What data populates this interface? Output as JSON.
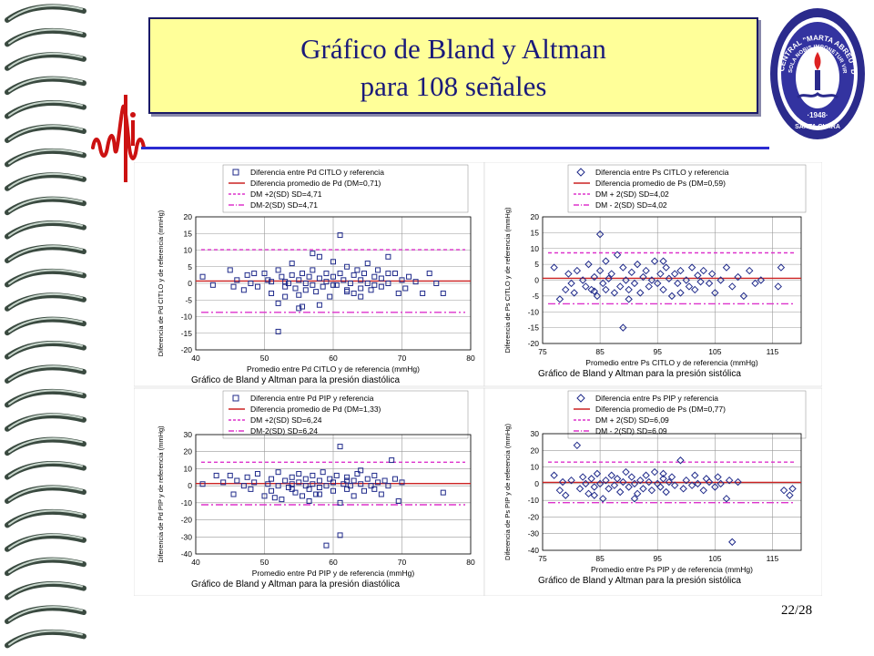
{
  "slide": {
    "title_line1": "Gráfico de Bland y Altman",
    "title_line2": "para 108 señales",
    "page_number": "22/28",
    "title_color": "#1a1a7a",
    "title_bg": "#ffff99",
    "accent_line_color": "#2b2bd1",
    "seal_text": "UNIVERSIDAD CENTRAL \"MARTA ABREU\" DE LAS VILLAS",
    "seal_motto": "VERITATE SOLA NOBIS IMPONETUR VIRILIS TOGA",
    "seal_year": "·1948·",
    "seal_city": "SANTA CLARA"
  },
  "chart_data": [
    {
      "type": "scatter",
      "title": "Gráfico de Bland y Altman para la presión diastólica",
      "xlabel": "Promedio entre Pd CITLO y de referencia (mmHg)",
      "ylabel": "Diferencia de Pd CITLO y de referencia (mmHg)",
      "xlim": [
        40,
        80
      ],
      "ylim": [
        -20,
        20
      ],
      "xticks": [
        40,
        50,
        60,
        70,
        80
      ],
      "yticks": [
        -20,
        -15,
        -10,
        -5,
        0,
        5,
        10,
        15,
        20
      ],
      "grid": true,
      "legend_position": "top",
      "marker": "square",
      "legend": [
        "Diferencia entre Pd CITLO y referencia",
        "Diferencia promedio de Pd (DM=0,71)",
        "DM +2(SD)     SD=4,71",
        "DM-2(SD)      SD=4,71"
      ],
      "mean_diff": 0.71,
      "upper_loa": 10.13,
      "lower_loa": -8.71,
      "points": [
        [
          41,
          2
        ],
        [
          42.5,
          -0.5
        ],
        [
          45,
          4
        ],
        [
          45.5,
          -1
        ],
        [
          46,
          1
        ],
        [
          47,
          -2
        ],
        [
          47.5,
          2.5
        ],
        [
          48,
          0
        ],
        [
          48.5,
          3
        ],
        [
          49,
          -1
        ],
        [
          50,
          3
        ],
        [
          50.5,
          1
        ],
        [
          51,
          -3
        ],
        [
          51,
          0.5
        ],
        [
          52,
          4
        ],
        [
          52,
          -6
        ],
        [
          52.5,
          2
        ],
        [
          53,
          -1
        ],
        [
          53,
          -4
        ],
        [
          53.5,
          0
        ],
        [
          54,
          6
        ],
        [
          54,
          2.5
        ],
        [
          54.5,
          -1.5
        ],
        [
          55,
          1
        ],
        [
          55,
          -3.5
        ],
        [
          55.5,
          3
        ],
        [
          55.5,
          -7
        ],
        [
          56,
          -2
        ],
        [
          56,
          0
        ],
        [
          56.5,
          2
        ],
        [
          57,
          4
        ],
        [
          57,
          -0.5
        ],
        [
          57.5,
          -2.5
        ],
        [
          58,
          1.5
        ],
        [
          58,
          8
        ],
        [
          58.5,
          -1
        ],
        [
          59,
          3
        ],
        [
          59,
          0.5
        ],
        [
          59.5,
          -4
        ],
        [
          60,
          2
        ],
        [
          60,
          6.5
        ],
        [
          60.5,
          -0.5
        ],
        [
          61,
          14.5
        ],
        [
          61,
          3
        ],
        [
          61.5,
          1
        ],
        [
          62,
          -2
        ],
        [
          62,
          5
        ],
        [
          62.5,
          0
        ],
        [
          63,
          2.5
        ],
        [
          63,
          -3
        ],
        [
          63.5,
          4
        ],
        [
          64,
          1
        ],
        [
          64,
          -1.5
        ],
        [
          64.5,
          3
        ],
        [
          65,
          0
        ],
        [
          65,
          6
        ],
        [
          65.5,
          -2
        ],
        [
          66,
          2
        ],
        [
          66,
          -0.5
        ],
        [
          66.5,
          4
        ],
        [
          67,
          -1
        ],
        [
          67,
          1.5
        ],
        [
          68,
          0
        ],
        [
          68,
          8
        ],
        [
          69,
          3
        ],
        [
          69.5,
          -3
        ],
        [
          70,
          1
        ],
        [
          70.5,
          -1.5
        ],
        [
          71,
          2
        ],
        [
          72,
          0.5
        ],
        [
          73,
          -3
        ],
        [
          74,
          3
        ],
        [
          75,
          0
        ],
        [
          76,
          -3
        ],
        [
          52,
          -14.5
        ],
        [
          55,
          -7.5
        ],
        [
          58,
          -6.5
        ],
        [
          57,
          9
        ],
        [
          62,
          -2.5
        ],
        [
          64,
          -4
        ],
        [
          53,
          0.5
        ],
        [
          60,
          -0.5
        ],
        [
          68,
          3
        ]
      ]
    },
    {
      "type": "scatter",
      "title": "Gráfico de Bland y Altman para la presión sistólica",
      "xlabel": "Promedio entre Ps CITLO y de referencia (mmHg)",
      "ylabel": "Diferencia de Ps CITLO y de referencia (mmHg)",
      "xlim": [
        75,
        120
      ],
      "ylim": [
        -20,
        20
      ],
      "xticks": [
        75,
        85,
        95,
        105,
        115
      ],
      "yticks": [
        -20,
        -15,
        -10,
        -5,
        0,
        5,
        10,
        15,
        20
      ],
      "grid": true,
      "legend_position": "top",
      "marker": "diamond",
      "legend": [
        "Diferencia entre Ps CITLO y referencia",
        "Diferencia promedio de Ps (DM=0,59)",
        "DM + 2(SD)     SD=4,02",
        "DM - 2(SD)     SD=4,02"
      ],
      "mean_diff": 0.59,
      "upper_loa": 8.63,
      "lower_loa": -7.45,
      "points": [
        [
          77,
          4
        ],
        [
          78,
          -6
        ],
        [
          79,
          -3
        ],
        [
          79.5,
          2
        ],
        [
          80,
          -1
        ],
        [
          80.5,
          -4
        ],
        [
          81,
          3
        ],
        [
          82,
          0
        ],
        [
          82.5,
          -2
        ],
        [
          83,
          5
        ],
        [
          83.5,
          -3
        ],
        [
          84,
          1
        ],
        [
          84.5,
          -5
        ],
        [
          85,
          14.5
        ],
        [
          85,
          3
        ],
        [
          85.5,
          -1
        ],
        [
          86,
          6
        ],
        [
          86,
          -3
        ],
        [
          86.5,
          0.5
        ],
        [
          87,
          2
        ],
        [
          87.5,
          -4
        ],
        [
          88,
          8
        ],
        [
          88.5,
          -2
        ],
        [
          89,
          -15
        ],
        [
          89,
          4
        ],
        [
          89.5,
          0
        ],
        [
          90,
          -3
        ],
        [
          90.5,
          2.5
        ],
        [
          91,
          -1
        ],
        [
          91.5,
          5
        ],
        [
          92,
          -4
        ],
        [
          92.5,
          1
        ],
        [
          93,
          3
        ],
        [
          93.5,
          -2
        ],
        [
          94,
          0
        ],
        [
          94.5,
          6
        ],
        [
          95,
          -1
        ],
        [
          95.5,
          2
        ],
        [
          96,
          -3
        ],
        [
          96.5,
          4
        ],
        [
          97,
          0.5
        ],
        [
          97.5,
          -5
        ],
        [
          98,
          2
        ],
        [
          98.5,
          -1
        ],
        [
          99,
          3
        ],
        [
          100,
          0
        ],
        [
          100.5,
          -2
        ],
        [
          101,
          4
        ],
        [
          101.5,
          -3
        ],
        [
          102,
          1.5
        ],
        [
          102.5,
          -0.5
        ],
        [
          103,
          3
        ],
        [
          104,
          -1
        ],
        [
          104.5,
          2
        ],
        [
          105,
          -4
        ],
        [
          106,
          0
        ],
        [
          107,
          4
        ],
        [
          108,
          -2
        ],
        [
          109,
          1
        ],
        [
          110,
          -5
        ],
        [
          111,
          3
        ],
        [
          112,
          -1
        ],
        [
          113,
          0
        ],
        [
          116,
          -2
        ],
        [
          116.5,
          4
        ],
        [
          84,
          -3.5
        ],
        [
          90,
          -6
        ],
        [
          96,
          6
        ],
        [
          99,
          -4
        ]
      ]
    },
    {
      "type": "scatter",
      "title": "Gráfico de Bland y Altman para la presión diastólica",
      "xlabel": "Promedio entre Pd PIP y de referencia (mmHg)",
      "ylabel": "Diferencia de Pd PIP y de referencia (mmHg)",
      "xlim": [
        40,
        80
      ],
      "ylim": [
        -40,
        30
      ],
      "xticks": [
        40,
        50,
        60,
        70,
        80
      ],
      "yticks": [
        -40,
        -30,
        -20,
        -10,
        0,
        10,
        20,
        30
      ],
      "grid": true,
      "legend_position": "top",
      "marker": "square",
      "legend": [
        "Diferencia entre Pd PIP y referencia",
        "Diferencia promedio de Pd (DM=1,33)",
        "DM +2(SD)     SD=6,24",
        "DM-2(SD)      SD=6,24"
      ],
      "mean_diff": 1.33,
      "upper_loa": 13.81,
      "lower_loa": -11.15,
      "points": [
        [
          41,
          1
        ],
        [
          43,
          6
        ],
        [
          44,
          2
        ],
        [
          45,
          6
        ],
        [
          45.5,
          -5
        ],
        [
          46,
          3
        ],
        [
          47,
          0
        ],
        [
          47.5,
          5
        ],
        [
          48,
          -2
        ],
        [
          48.5,
          2
        ],
        [
          49,
          7
        ],
        [
          50,
          -6
        ],
        [
          50.5,
          1
        ],
        [
          51,
          4
        ],
        [
          51,
          -3
        ],
        [
          52,
          8
        ],
        [
          52,
          0
        ],
        [
          52.5,
          -8
        ],
        [
          53,
          3
        ],
        [
          53.5,
          -1
        ],
        [
          54,
          5
        ],
        [
          54,
          1
        ],
        [
          54.5,
          -4
        ],
        [
          55,
          2
        ],
        [
          55,
          7
        ],
        [
          55.5,
          -6
        ],
        [
          56,
          0
        ],
        [
          56,
          4
        ],
        [
          56.5,
          -2
        ],
        [
          57,
          6
        ],
        [
          57,
          1
        ],
        [
          57.5,
          -5
        ],
        [
          58,
          3
        ],
        [
          58,
          -1
        ],
        [
          58.5,
          8
        ],
        [
          59,
          0
        ],
        [
          59,
          -35
        ],
        [
          59.5,
          4
        ],
        [
          60,
          -3
        ],
        [
          60,
          2
        ],
        [
          60.5,
          6
        ],
        [
          61,
          23
        ],
        [
          61,
          -10
        ],
        [
          61.5,
          1
        ],
        [
          62,
          -2
        ],
        [
          62,
          5
        ],
        [
          62.5,
          0
        ],
        [
          63,
          3
        ],
        [
          63,
          -6
        ],
        [
          63.5,
          7
        ],
        [
          64,
          1
        ],
        [
          64.5,
          -3
        ],
        [
          65,
          4
        ],
        [
          65.5,
          0
        ],
        [
          66,
          6
        ],
        [
          66,
          -2
        ],
        [
          66.5,
          2
        ],
        [
          67,
          -5
        ],
        [
          67.5,
          3
        ],
        [
          68,
          0
        ],
        [
          68.5,
          15
        ],
        [
          69,
          4
        ],
        [
          69.5,
          -9
        ],
        [
          70,
          2
        ],
        [
          76,
          -4
        ],
        [
          51.5,
          -7
        ],
        [
          56.5,
          -9
        ],
        [
          61,
          -29
        ],
        [
          58,
          -5
        ],
        [
          64,
          9
        ],
        [
          54,
          -2
        ],
        [
          62,
          3
        ]
      ]
    },
    {
      "type": "scatter",
      "title": "Gráfico de Bland y Altman para la presión sistólica",
      "xlabel": "Promedio entre Ps PIP y de referencia (mmHg)",
      "ylabel": "Diferencia de Ps PIP y de referencia (mmHg)",
      "xlim": [
        75,
        120
      ],
      "ylim": [
        -40,
        30
      ],
      "xticks": [
        75,
        85,
        95,
        105,
        115
      ],
      "yticks": [
        -40,
        -30,
        -20,
        -10,
        0,
        10,
        20,
        30
      ],
      "grid": true,
      "legend_position": "top",
      "marker": "diamond",
      "legend": [
        "Diferencia entre Ps PIP y referencia",
        "Diferencia promedio de Ps (DM=0,77)",
        "DM + 2(SD)     SD=6,09",
        "DM - 2(SD)     SD=6,09"
      ],
      "mean_diff": 0.77,
      "upper_loa": 12.95,
      "lower_loa": -11.41,
      "points": [
        [
          77,
          5
        ],
        [
          78,
          -4
        ],
        [
          78.5,
          1
        ],
        [
          79,
          -7
        ],
        [
          80,
          2
        ],
        [
          81,
          23
        ],
        [
          81.5,
          -3
        ],
        [
          82,
          4
        ],
        [
          82.5,
          0
        ],
        [
          83,
          -6
        ],
        [
          83.5,
          3
        ],
        [
          84,
          -2
        ],
        [
          84.5,
          6
        ],
        [
          85,
          0
        ],
        [
          85.5,
          -9
        ],
        [
          86,
          2
        ],
        [
          86.5,
          -3
        ],
        [
          87,
          5
        ],
        [
          87.5,
          -1
        ],
        [
          88,
          3
        ],
        [
          88.5,
          -5
        ],
        [
          89,
          1
        ],
        [
          89.5,
          7
        ],
        [
          90,
          -2
        ],
        [
          90.5,
          4
        ],
        [
          91,
          0
        ],
        [
          91.5,
          -6
        ],
        [
          92,
          2
        ],
        [
          92.5,
          -3
        ],
        [
          93,
          5
        ],
        [
          93.5,
          1
        ],
        [
          94,
          -4
        ],
        [
          94.5,
          7
        ],
        [
          95,
          0
        ],
        [
          95.5,
          -2
        ],
        [
          96,
          3
        ],
        [
          96.5,
          -5
        ],
        [
          97,
          1
        ],
        [
          97.5,
          4
        ],
        [
          98,
          -1
        ],
        [
          99,
          14
        ],
        [
          99.5,
          -3
        ],
        [
          100,
          2
        ],
        [
          101,
          -1
        ],
        [
          101.5,
          5
        ],
        [
          102,
          0
        ],
        [
          103,
          -4
        ],
        [
          103.5,
          3
        ],
        [
          104,
          1
        ],
        [
          105,
          -2
        ],
        [
          105.5,
          4
        ],
        [
          106,
          0
        ],
        [
          107,
          -9
        ],
        [
          107.5,
          2
        ],
        [
          108,
          -35
        ],
        [
          109,
          1
        ],
        [
          117,
          -4
        ],
        [
          118,
          -7
        ],
        [
          118.5,
          -3
        ],
        [
          91,
          -9
        ],
        [
          84,
          -7
        ],
        [
          96,
          6
        ]
      ]
    }
  ]
}
